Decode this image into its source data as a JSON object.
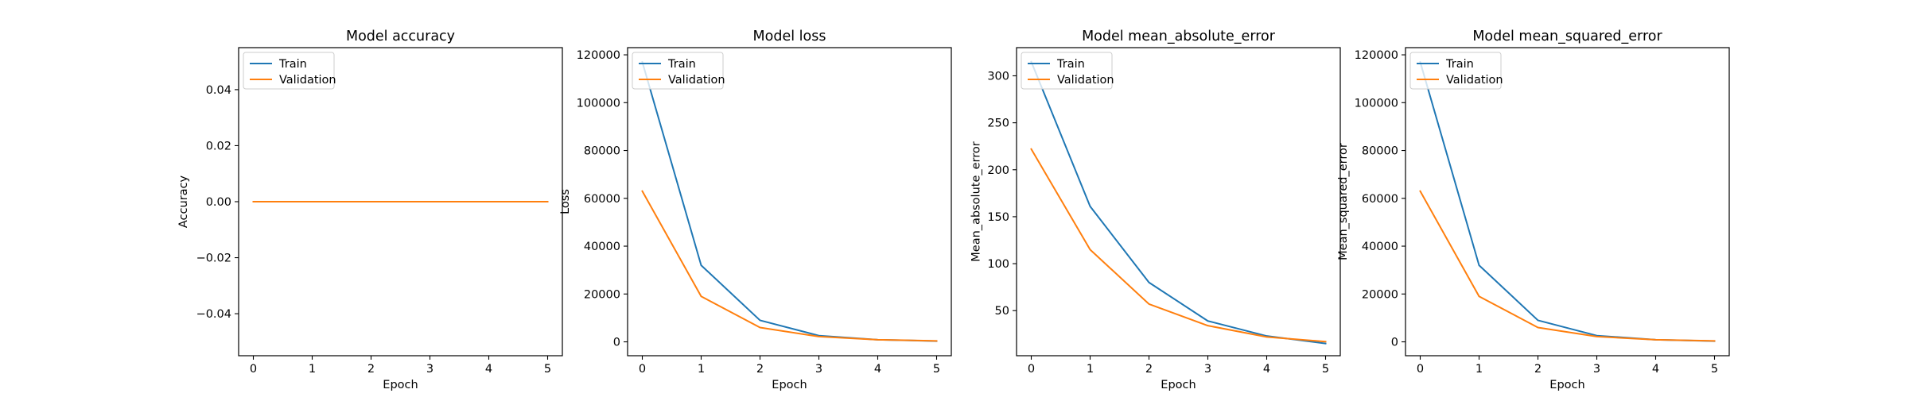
{
  "colors": {
    "train": "#1f77b4",
    "validation": "#ff7f0e",
    "axis": "#000000",
    "legend_border": "#cccccc"
  },
  "chart_data": [
    {
      "type": "line",
      "title": "Model accuracy",
      "xlabel": "Epoch",
      "ylabel": "Accuracy",
      "x": [
        0,
        1,
        2,
        3,
        4,
        5
      ],
      "xlim": [
        -0.25,
        5.25
      ],
      "ylim": [
        -0.055,
        0.055
      ],
      "xticks": [
        0,
        1,
        2,
        3,
        4,
        5
      ],
      "yticks": [
        -0.04,
        -0.02,
        0.0,
        0.02,
        0.04
      ],
      "ytick_labels": [
        "−0.04",
        "−0.02",
        "0.00",
        "0.02",
        "0.04"
      ],
      "grid": false,
      "legend_position": "upper left",
      "series": [
        {
          "name": "Train",
          "color": "#1f77b4",
          "values": [
            0,
            0,
            0,
            0,
            0,
            0
          ]
        },
        {
          "name": "Validation",
          "color": "#ff7f0e",
          "values": [
            0,
            0,
            0,
            0,
            0,
            0
          ]
        }
      ]
    },
    {
      "type": "line",
      "title": "Model loss",
      "xlabel": "Epoch",
      "ylabel": "Loss",
      "x": [
        0,
        1,
        2,
        3,
        4,
        5
      ],
      "xlim": [
        -0.25,
        5.25
      ],
      "ylim": [
        -5800,
        123000
      ],
      "xticks": [
        0,
        1,
        2,
        3,
        4,
        5
      ],
      "yticks": [
        0,
        20000,
        40000,
        60000,
        80000,
        100000,
        120000
      ],
      "ytick_labels": [
        "0",
        "20000",
        "40000",
        "60000",
        "80000",
        "100000",
        "120000"
      ],
      "grid": false,
      "legend_position": "upper left",
      "series": [
        {
          "name": "Train",
          "color": "#1f77b4",
          "values": [
            117000,
            32000,
            9000,
            2600,
            900,
            300
          ]
        },
        {
          "name": "Validation",
          "color": "#ff7f0e",
          "values": [
            63000,
            19000,
            6000,
            2200,
            900,
            400
          ]
        }
      ]
    },
    {
      "type": "line",
      "title": "Model mean_absolute_error",
      "xlabel": "Epoch",
      "ylabel": "Mean_absolute_error",
      "x": [
        0,
        1,
        2,
        3,
        4,
        5
      ],
      "xlim": [
        -0.25,
        5.25
      ],
      "ylim": [
        2,
        330
      ],
      "xticks": [
        0,
        1,
        2,
        3,
        4,
        5
      ],
      "yticks": [
        50,
        100,
        150,
        200,
        250,
        300
      ],
      "ytick_labels": [
        "50",
        "100",
        "150",
        "200",
        "250",
        "300"
      ],
      "grid": false,
      "legend_position": "upper left",
      "series": [
        {
          "name": "Train",
          "color": "#1f77b4",
          "values": [
            315,
            161,
            80,
            39,
            23,
            15
          ]
        },
        {
          "name": "Validation",
          "color": "#ff7f0e",
          "values": [
            222,
            115,
            57,
            34,
            22,
            17
          ]
        }
      ]
    },
    {
      "type": "line",
      "title": "Model mean_squared_error",
      "xlabel": "Epoch",
      "ylabel": "Mean_squared_error",
      "x": [
        0,
        1,
        2,
        3,
        4,
        5
      ],
      "xlim": [
        -0.25,
        5.25
      ],
      "ylim": [
        -5800,
        123000
      ],
      "xticks": [
        0,
        1,
        2,
        3,
        4,
        5
      ],
      "yticks": [
        0,
        20000,
        40000,
        60000,
        80000,
        100000,
        120000
      ],
      "ytick_labels": [
        "0",
        "20000",
        "40000",
        "60000",
        "80000",
        "100000",
        "120000"
      ],
      "grid": false,
      "legend_position": "upper left",
      "series": [
        {
          "name": "Train",
          "color": "#1f77b4",
          "values": [
            117000,
            32000,
            9000,
            2600,
            900,
            300
          ]
        },
        {
          "name": "Validation",
          "color": "#ff7f0e",
          "values": [
            63000,
            19000,
            6000,
            2200,
            900,
            400
          ]
        }
      ]
    }
  ]
}
